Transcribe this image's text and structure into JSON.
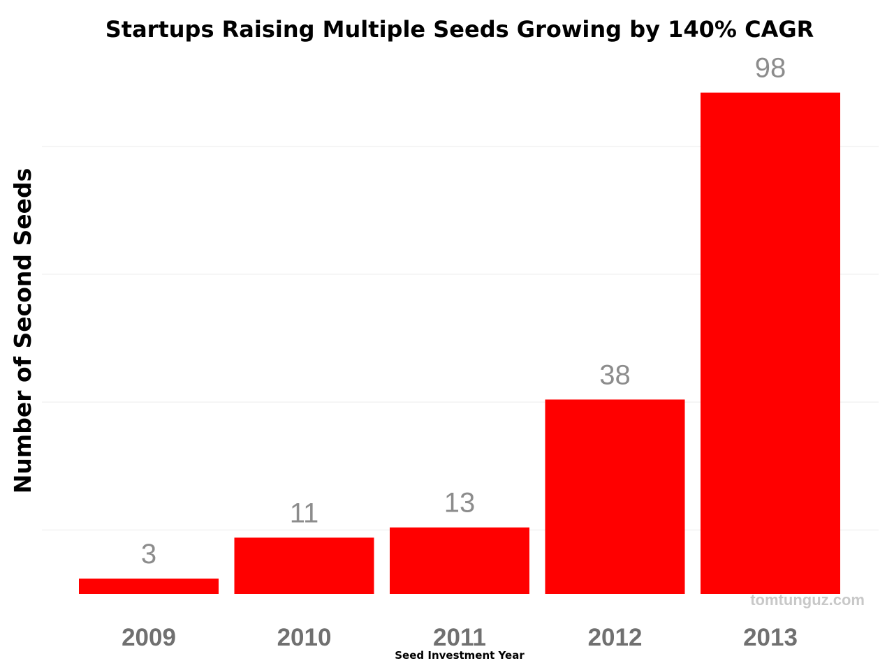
{
  "chart_data": {
    "type": "bar",
    "title": "Startups Raising Multiple Seeds Growing by 140% CAGR",
    "xlabel": "Seed Investment Year",
    "ylabel": "Number of Second Seeds",
    "categories": [
      "2009",
      "2010",
      "2011",
      "2012",
      "2013"
    ],
    "values": [
      3,
      11,
      13,
      38,
      98
    ],
    "data_labels": [
      "3",
      "11",
      "13",
      "38",
      "98"
    ],
    "ylim": [
      0,
      100
    ],
    "grid": true,
    "gridlines": [
      12.5,
      37.5,
      62.5,
      87.5
    ],
    "bar_color": "#ff0000",
    "watermark": "tomtunguz.com"
  }
}
